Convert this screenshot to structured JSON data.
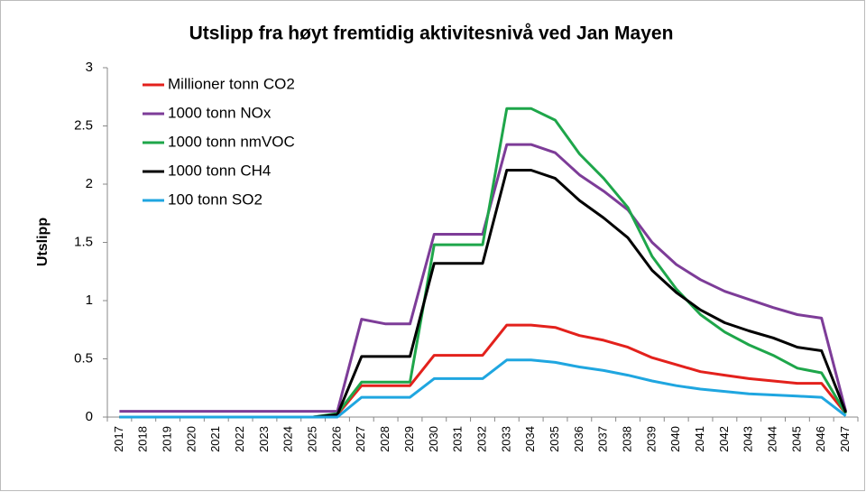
{
  "chart_data": {
    "type": "line",
    "title": "Utslipp fra høyt fremtidig aktivitesnivå ved Jan Mayen",
    "y_label": "Utslipp",
    "categories": [
      "2017",
      "2018",
      "2019",
      "2020",
      "2021",
      "2022",
      "2023",
      "2024",
      "2025",
      "2026",
      "2027",
      "2028",
      "2029",
      "2030",
      "2031",
      "2032",
      "2033",
      "2034",
      "2035",
      "2036",
      "2037",
      "2038",
      "2039",
      "2040",
      "2041",
      "2042",
      "2043",
      "2044",
      "2045",
      "2046",
      "2047"
    ],
    "series": [
      {
        "name": "Millioner tonn CO2",
        "color": "#e3211c",
        "values": [
          0,
          0,
          0,
          0,
          0,
          0,
          0,
          0,
          0,
          0.02,
          0.27,
          0.27,
          0.27,
          0.53,
          0.53,
          0.53,
          0.79,
          0.79,
          0.77,
          0.7,
          0.66,
          0.6,
          0.51,
          0.45,
          0.39,
          0.36,
          0.33,
          0.31,
          0.29,
          0.29,
          0.03
        ]
      },
      {
        "name": "1000 tonn NOx",
        "color": "#7d3c98",
        "values": [
          0.05,
          0.05,
          0.05,
          0.05,
          0.05,
          0.05,
          0.05,
          0.05,
          0.05,
          0.05,
          0.84,
          0.8,
          0.8,
          1.57,
          1.57,
          1.57,
          2.34,
          2.34,
          2.27,
          2.08,
          1.94,
          1.78,
          1.5,
          1.31,
          1.18,
          1.08,
          1.01,
          0.94,
          0.88,
          0.85,
          0.05
        ]
      },
      {
        "name": "1000 tonn nmVOC",
        "color": "#1ea64a",
        "values": [
          0,
          0,
          0,
          0,
          0,
          0,
          0,
          0,
          0,
          0.03,
          0.3,
          0.3,
          0.3,
          1.48,
          1.48,
          1.48,
          2.65,
          2.65,
          2.55,
          2.26,
          2.05,
          1.8,
          1.38,
          1.1,
          0.88,
          0.73,
          0.62,
          0.53,
          0.42,
          0.38,
          0.03
        ]
      },
      {
        "name": "1000 tonn CH4",
        "color": "#000000",
        "values": [
          0,
          0,
          0,
          0,
          0,
          0,
          0,
          0,
          0,
          0.02,
          0.52,
          0.52,
          0.52,
          1.32,
          1.32,
          1.32,
          2.12,
          2.12,
          2.05,
          1.86,
          1.71,
          1.54,
          1.26,
          1.07,
          0.92,
          0.81,
          0.74,
          0.68,
          0.6,
          0.57,
          0.04
        ]
      },
      {
        "name": "100 tonn SO2",
        "color": "#1fa6e0",
        "values": [
          0,
          0,
          0,
          0,
          0,
          0,
          0,
          0,
          0,
          0,
          0.17,
          0.17,
          0.17,
          0.33,
          0.33,
          0.33,
          0.49,
          0.49,
          0.47,
          0.43,
          0.4,
          0.36,
          0.31,
          0.27,
          0.24,
          0.22,
          0.2,
          0.19,
          0.18,
          0.17,
          0.01
        ]
      }
    ],
    "ylim": [
      0,
      3
    ],
    "yticks": [
      0,
      0.5,
      1,
      1.5,
      2,
      2.5,
      3
    ],
    "grid": false,
    "legend": "upper left"
  }
}
